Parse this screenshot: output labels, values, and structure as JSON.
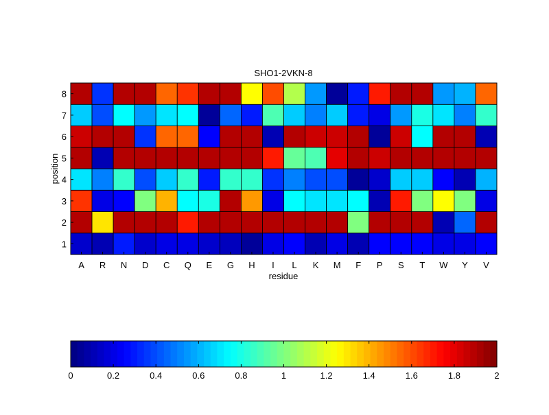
{
  "chart_data": {
    "type": "heatmap",
    "title": "SHO1-2VKN-8",
    "xlabel": "residue",
    "ylabel": "position",
    "x_categories": [
      "A",
      "R",
      "N",
      "D",
      "C",
      "Q",
      "E",
      "G",
      "H",
      "I",
      "L",
      "K",
      "M",
      "F",
      "P",
      "S",
      "T",
      "W",
      "Y",
      "V"
    ],
    "y_categories": [
      "1",
      "2",
      "3",
      "4",
      "5",
      "6",
      "7",
      "8"
    ],
    "values": [
      [
        0.15,
        0.1,
        0.3,
        0.15,
        0.2,
        0.2,
        0.15,
        0.12,
        0.05,
        0.2,
        0.25,
        0.1,
        0.2,
        0.1,
        0.25,
        0.25,
        0.25,
        0.2,
        0.2,
        0.25
      ],
      [
        1.9,
        1.3,
        1.9,
        1.9,
        1.9,
        1.7,
        1.9,
        1.9,
        1.9,
        1.9,
        1.9,
        1.9,
        1.9,
        1.0,
        1.9,
        1.9,
        1.9,
        0.1,
        0.45,
        1.9
      ],
      [
        1.65,
        0.2,
        0.25,
        1.0,
        1.4,
        0.75,
        0.8,
        1.9,
        1.45,
        0.2,
        0.75,
        0.7,
        0.7,
        0.75,
        0.1,
        1.7,
        1.0,
        1.25,
        1.0,
        0.2
      ],
      [
        0.7,
        0.5,
        0.85,
        0.4,
        0.65,
        0.85,
        0.3,
        0.85,
        0.85,
        0.35,
        0.5,
        0.4,
        0.4,
        0.05,
        0.15,
        0.65,
        0.65,
        0.25,
        0.1,
        0.6
      ],
      [
        1.9,
        0.1,
        1.9,
        1.9,
        1.9,
        1.9,
        1.9,
        1.9,
        1.9,
        1.7,
        0.95,
        0.9,
        1.8,
        1.9,
        1.85,
        1.9,
        1.9,
        1.9,
        1.9,
        1.9
      ],
      [
        1.85,
        1.9,
        1.9,
        0.35,
        1.55,
        1.55,
        0.25,
        1.9,
        1.9,
        0.1,
        1.9,
        1.85,
        1.85,
        1.9,
        0.05,
        1.85,
        0.75,
        1.9,
        1.9,
        0.1
      ],
      [
        0.65,
        0.4,
        0.75,
        0.55,
        0.7,
        0.75,
        0.05,
        0.45,
        0.3,
        0.9,
        0.65,
        0.5,
        0.65,
        0.3,
        0.2,
        0.55,
        0.8,
        0.7,
        0.5,
        0.85
      ],
      [
        1.9,
        0.35,
        1.9,
        1.9,
        1.55,
        1.65,
        1.9,
        1.9,
        1.25,
        1.6,
        1.1,
        0.55,
        0.05,
        0.3,
        1.7,
        1.9,
        1.9,
        0.55,
        0.6,
        1.55
      ]
    ],
    "colorbar": {
      "colormap": "jet",
      "range": [
        0,
        2
      ],
      "ticks": [
        "0",
        "0.2",
        "0.4",
        "0.6",
        "0.8",
        "1",
        "1.2",
        "1.4",
        "1.6",
        "1.8",
        "2"
      ],
      "placement": "bottom"
    },
    "grid": false
  }
}
